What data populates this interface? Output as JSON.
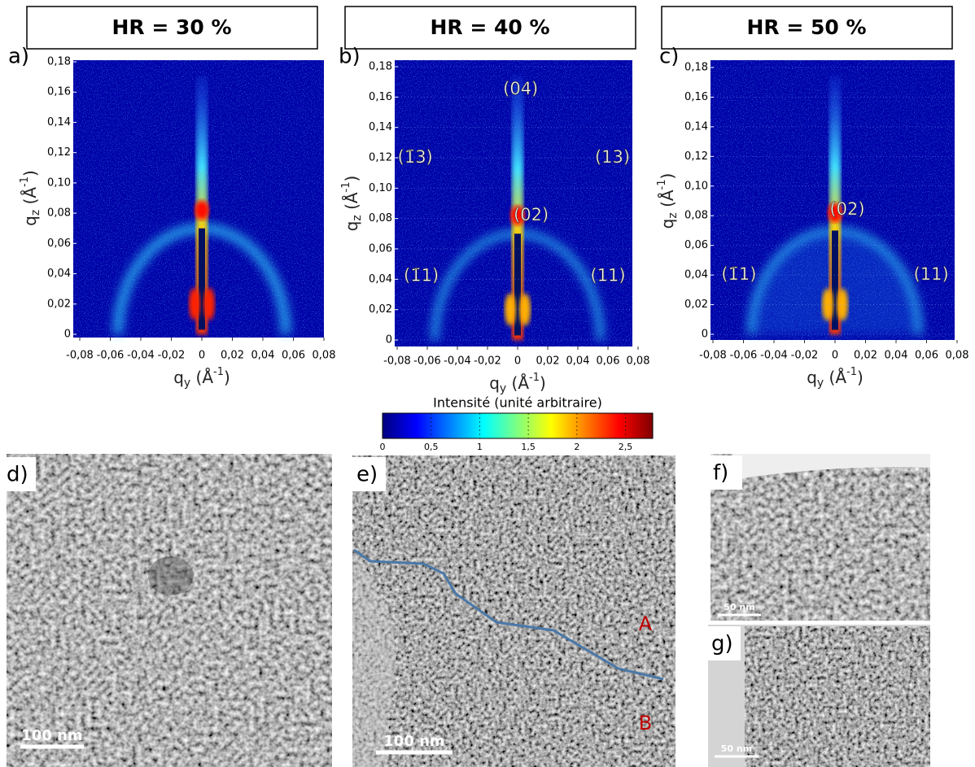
{
  "panels": [
    {
      "header": "HR = 30 %",
      "letter": "a)",
      "xlim": [
        -0.08,
        0.08
      ],
      "ylim": [
        0,
        0.18
      ],
      "xticks": [
        {
          "value": -0.08,
          "label": "-0,08"
        },
        {
          "value": -0.06,
          "label": "-0,06"
        },
        {
          "value": -0.04,
          "label": "-0,04"
        },
        {
          "value": -0.02,
          "label": "-0,02"
        },
        0,
        {
          "value": 0.02,
          "label": "0,02"
        },
        {
          "value": 0.04,
          "label": "0,04"
        },
        {
          "value": 0.06,
          "label": "0,06"
        },
        {
          "value": 0.08,
          "label": "0,08"
        }
      ],
      "yticks": [
        0,
        {
          "value": 0.02,
          "label": "0,02"
        },
        {
          "value": 0.04,
          "label": "0,04"
        },
        {
          "value": 0.06,
          "label": "0,06"
        },
        {
          "value": 0.08,
          "label": "0,08"
        },
        {
          "value": 0.1,
          "label": "0,10"
        },
        {
          "value": 0.12,
          "label": "0,12"
        },
        {
          "value": 0.14,
          "label": "0,14"
        },
        {
          "value": 0.16,
          "label": "0,16"
        },
        {
          "value": 0.18,
          "label": "0,18"
        }
      ],
      "xlabel": {
        "base": "q",
        "sub": "y",
        "unit": " (Å",
        "sup": "-1",
        "close": ")"
      },
      "ylabel": {
        "base": "q",
        "sub": "z",
        "unit": " (Å",
        "sup": "-1",
        "close": ")"
      },
      "annotations": []
    },
    {
      "header": "HR = 40 %",
      "letter": "b)",
      "xlim": [
        -0.08,
        0.08
      ],
      "ylim": [
        0,
        0.18
      ],
      "xticks": [
        {
          "value": -0.08,
          "label": "-0,08"
        },
        {
          "value": -0.06,
          "label": "-0,06"
        },
        {
          "value": -0.04,
          "label": "-0,04"
        },
        {
          "value": -0.02,
          "label": "-0,02"
        },
        0,
        {
          "value": 0.02,
          "label": "0,02"
        },
        {
          "value": 0.04,
          "label": "0,04"
        },
        {
          "value": 0.06,
          "label": "0,06"
        },
        {
          "value": 0.08,
          "label": "0,08"
        }
      ],
      "yticks": [
        0,
        {
          "value": 0.02,
          "label": "0,02"
        },
        {
          "value": 0.04,
          "label": "0,04"
        },
        {
          "value": 0.06,
          "label": "0,06"
        },
        {
          "value": 0.08,
          "label": "0,08"
        },
        {
          "value": 0.1,
          "label": "0,10"
        },
        {
          "value": 0.12,
          "label": "0,12"
        },
        {
          "value": 0.14,
          "label": "0,14"
        },
        {
          "value": 0.16,
          "label": "0,16"
        },
        {
          "value": 0.18,
          "label": "0,18"
        }
      ],
      "xlabel": {
        "base": "q",
        "sub": "y",
        "unit": " (Å",
        "sup": "-1",
        "close": ")"
      },
      "ylabel": {
        "base": "q",
        "sub": "z",
        "unit": " (Å",
        "sup": "-1",
        "close": ")"
      },
      "annotations": [
        {
          "text": "(04)",
          "q_y": 0.002,
          "q_z": 0.165
        },
        {
          "text": "(1̄3)",
          "q_y": -0.068,
          "q_z": 0.12
        },
        {
          "text": "(13)",
          "q_y": 0.063,
          "q_z": 0.12
        },
        {
          "text": "(02)",
          "q_y": 0.009,
          "q_z": 0.082
        },
        {
          "text": "(1̄1)",
          "q_y": -0.064,
          "q_z": 0.042
        },
        {
          "text": "(11)",
          "q_y": 0.06,
          "q_z": 0.042
        }
      ]
    },
    {
      "header": "HR = 50 %",
      "letter": "c)",
      "xlim": [
        -0.08,
        0.08
      ],
      "ylim": [
        0,
        0.18
      ],
      "xticks": [
        {
          "value": -0.08,
          "label": "-0,08"
        },
        {
          "value": -0.06,
          "label": "-0,06"
        },
        {
          "value": -0.04,
          "label": "-0,04"
        },
        {
          "value": -0.02,
          "label": "-0,02"
        },
        0,
        {
          "value": 0.02,
          "label": "0,02"
        },
        {
          "value": 0.04,
          "label": "0,04"
        },
        {
          "value": 0.06,
          "label": "0,06"
        },
        {
          "value": 0.08,
          "label": "0,08"
        }
      ],
      "yticks": [
        0,
        {
          "value": 0.02,
          "label": "0,02"
        },
        {
          "value": 0.04,
          "label": "0,04"
        },
        {
          "value": 0.06,
          "label": "0,06"
        },
        {
          "value": 0.08,
          "label": "0,08"
        },
        {
          "value": 0.1,
          "label": "0,10"
        },
        {
          "value": 0.12,
          "label": "0,12"
        },
        {
          "value": 0.14,
          "label": "0,14"
        },
        {
          "value": 0.16,
          "label": "0,16"
        },
        {
          "value": 0.18,
          "label": "0,18"
        }
      ],
      "xlabel": {
        "base": "q",
        "sub": "y",
        "unit": " (Å",
        "sup": "-1",
        "close": ")"
      },
      "ylabel": {
        "base": "q",
        "sub": "z",
        "unit": " (Å",
        "sup": "-1",
        "close": ")"
      },
      "annotations": [
        {
          "text": "(02)",
          "q_y": 0.008,
          "q_z": 0.084
        },
        {
          "text": "(1̄1)",
          "q_y": -0.063,
          "q_z": 0.04
        },
        {
          "text": "(11)",
          "q_y": 0.063,
          "q_z": 0.04
        }
      ]
    }
  ],
  "colorbar": {
    "title": "Intensité (unité arbitraire)",
    "lim": [
      0,
      2.78
    ],
    "ticks": [
      0,
      {
        "value": 0.5,
        "label": "0,5"
      },
      1,
      {
        "value": 1.5,
        "label": "1,5"
      },
      2,
      {
        "value": 2.5,
        "label": "2,5"
      }
    ]
  },
  "micrographs": [
    {
      "letter": "d)",
      "scale_bar": "100 nm"
    },
    {
      "letter": "e)",
      "scale_bar": "100 nm",
      "regions": [
        "A",
        "B"
      ]
    },
    {
      "letter": "f)",
      "scale_bar": "50 nm"
    },
    {
      "letter": "g)",
      "scale_bar": "50 nm"
    }
  ]
}
